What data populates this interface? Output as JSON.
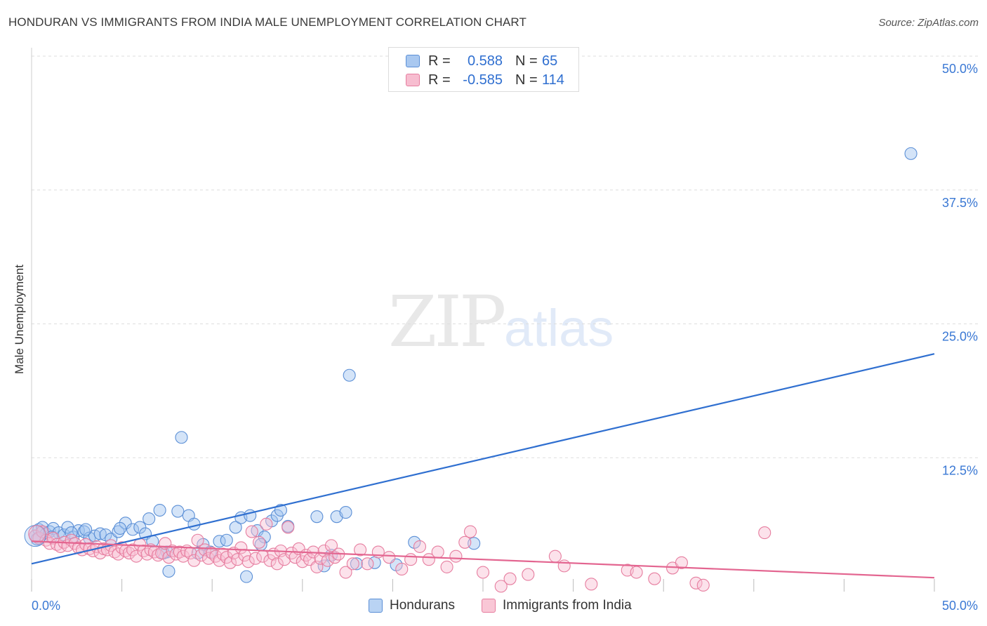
{
  "title": "HONDURAN VS IMMIGRANTS FROM INDIA MALE UNEMPLOYMENT CORRELATION CHART",
  "source": "Source: ZipAtlas.com",
  "watermark": {
    "zip": "ZIP",
    "atlas": "atlas"
  },
  "legend_top": {
    "rows": [
      {
        "r_label": "R =",
        "r_value": "0.588",
        "n_label": "N =",
        "n_value": "65",
        "color": "#a9c8f0",
        "border": "#5b8fd6"
      },
      {
        "r_label": "R =",
        "r_value": "-0.585",
        "n_label": "N =",
        "n_value": "114",
        "color": "#f7bdd0",
        "border": "#e67d9f"
      }
    ]
  },
  "legend_bottom": [
    {
      "label": "Hondurans",
      "color": "#b9d3f3",
      "border": "#5b8fd6"
    },
    {
      "label": "Immigrants from India",
      "color": "#f9c7d6",
      "border": "#e67d9f"
    }
  ],
  "chart_data": {
    "type": "scatter",
    "title": "HONDURAN VS IMMIGRANTS FROM INDIA MALE UNEMPLOYMENT CORRELATION CHART",
    "xlabel": "",
    "ylabel": "Male Unemployment",
    "xlim": [
      0,
      50
    ],
    "ylim": [
      0,
      50
    ],
    "x_tick_labels": [
      "0.0%",
      "50.0%"
    ],
    "y_ticks": [
      12.5,
      25.0,
      37.5,
      50.0
    ],
    "y_tick_labels": [
      "12.5%",
      "25.0%",
      "37.5%",
      "50.0%"
    ],
    "grid": true,
    "series": [
      {
        "name": "Hondurans",
        "color": "#5b8fd6",
        "fill": "rgba(160,195,240,0.45)",
        "trend": {
          "x": [
            0,
            50
          ],
          "y": [
            2.6,
            22.2
          ],
          "color": "#2f6fd0"
        },
        "points": [
          [
            0.2,
            5.2
          ],
          [
            0.4,
            5.8
          ],
          [
            0.6,
            6.0
          ],
          [
            0.8,
            5.4
          ],
          [
            1.0,
            5.6
          ],
          [
            1.2,
            5.9
          ],
          [
            1.5,
            5.5
          ],
          [
            1.8,
            5.3
          ],
          [
            2.0,
            6.0
          ],
          [
            2.3,
            5.1
          ],
          [
            2.6,
            5.7
          ],
          [
            2.9,
            5.6
          ],
          [
            3.2,
            5.0
          ],
          [
            3.5,
            5.2
          ],
          [
            3.8,
            5.4
          ],
          [
            4.1,
            5.3
          ],
          [
            4.4,
            4.9
          ],
          [
            4.8,
            5.6
          ],
          [
            5.2,
            6.4
          ],
          [
            5.6,
            5.8
          ],
          [
            6.0,
            6.0
          ],
          [
            6.3,
            5.4
          ],
          [
            6.5,
            6.8
          ],
          [
            6.7,
            4.7
          ],
          [
            7.1,
            7.6
          ],
          [
            7.5,
            3.7
          ],
          [
            7.6,
            1.9
          ],
          [
            8.1,
            7.5
          ],
          [
            8.3,
            14.4
          ],
          [
            8.7,
            7.1
          ],
          [
            9.0,
            6.3
          ],
          [
            9.5,
            4.4
          ],
          [
            9.9,
            3.7
          ],
          [
            10.4,
            4.7
          ],
          [
            10.8,
            4.8
          ],
          [
            11.3,
            6.0
          ],
          [
            11.6,
            6.9
          ],
          [
            11.9,
            1.4
          ],
          [
            12.1,
            7.1
          ],
          [
            12.5,
            5.7
          ],
          [
            12.9,
            5.1
          ],
          [
            13.3,
            6.6
          ],
          [
            13.6,
            7.1
          ],
          [
            13.8,
            7.6
          ],
          [
            14.2,
            6.1
          ],
          [
            15.8,
            7.0
          ],
          [
            16.2,
            2.4
          ],
          [
            16.6,
            3.4
          ],
          [
            16.9,
            7.0
          ],
          [
            17.4,
            7.4
          ],
          [
            17.6,
            20.2
          ],
          [
            18.0,
            2.6
          ],
          [
            19.0,
            2.7
          ],
          [
            20.2,
            2.5
          ],
          [
            21.2,
            4.6
          ],
          [
            24.5,
            4.5
          ],
          [
            48.7,
            40.9
          ],
          [
            0.3,
            4.9
          ],
          [
            1.1,
            5.1
          ],
          [
            2.2,
            5.5
          ],
          [
            3.0,
            5.8
          ],
          [
            4.9,
            5.9
          ],
          [
            7.3,
            3.6
          ],
          [
            9.2,
            3.6
          ],
          [
            12.7,
            4.4
          ]
        ]
      },
      {
        "name": "Immigrants from India",
        "color": "#e67d9f",
        "fill": "rgba(248,190,210,0.45)",
        "trend": {
          "x": [
            0,
            50
          ],
          "y": [
            4.7,
            1.3
          ],
          "color": "#e36590"
        },
        "points": [
          [
            0.2,
            5.2
          ],
          [
            0.4,
            5.0
          ],
          [
            0.6,
            5.6
          ],
          [
            0.8,
            4.8
          ],
          [
            1.0,
            4.5
          ],
          [
            1.2,
            5.0
          ],
          [
            1.4,
            4.4
          ],
          [
            1.6,
            4.2
          ],
          [
            1.8,
            4.6
          ],
          [
            2.0,
            4.3
          ],
          [
            2.2,
            4.8
          ],
          [
            2.4,
            4.5
          ],
          [
            2.6,
            4.1
          ],
          [
            2.8,
            3.9
          ],
          [
            3.0,
            4.4
          ],
          [
            3.2,
            4.0
          ],
          [
            3.4,
            3.8
          ],
          [
            3.6,
            4.2
          ],
          [
            3.8,
            3.6
          ],
          [
            4.0,
            4.0
          ],
          [
            4.2,
            3.9
          ],
          [
            4.4,
            4.3
          ],
          [
            4.6,
            3.7
          ],
          [
            4.8,
            3.5
          ],
          [
            5.0,
            4.1
          ],
          [
            5.2,
            3.8
          ],
          [
            5.4,
            3.6
          ],
          [
            5.6,
            3.9
          ],
          [
            5.8,
            3.3
          ],
          [
            6.0,
            4.4
          ],
          [
            6.2,
            3.8
          ],
          [
            6.4,
            3.5
          ],
          [
            6.6,
            3.9
          ],
          [
            6.8,
            3.7
          ],
          [
            7.0,
            3.4
          ],
          [
            7.2,
            3.6
          ],
          [
            7.4,
            4.5
          ],
          [
            7.6,
            3.2
          ],
          [
            7.8,
            3.8
          ],
          [
            8.0,
            3.5
          ],
          [
            8.2,
            3.7
          ],
          [
            8.4,
            3.3
          ],
          [
            8.6,
            3.8
          ],
          [
            8.8,
            3.6
          ],
          [
            9.0,
            2.9
          ],
          [
            9.2,
            4.8
          ],
          [
            9.4,
            3.4
          ],
          [
            9.6,
            3.9
          ],
          [
            9.8,
            3.1
          ],
          [
            10.0,
            3.6
          ],
          [
            10.2,
            3.3
          ],
          [
            10.4,
            2.9
          ],
          [
            10.6,
            3.5
          ],
          [
            10.8,
            3.2
          ],
          [
            11.0,
            2.7
          ],
          [
            11.2,
            3.6
          ],
          [
            11.4,
            3.0
          ],
          [
            11.6,
            4.1
          ],
          [
            11.8,
            3.4
          ],
          [
            12.0,
            2.8
          ],
          [
            12.2,
            5.6
          ],
          [
            12.4,
            3.1
          ],
          [
            12.6,
            4.6
          ],
          [
            12.8,
            3.3
          ],
          [
            13.0,
            6.3
          ],
          [
            13.2,
            2.9
          ],
          [
            13.4,
            3.5
          ],
          [
            13.6,
            2.6
          ],
          [
            13.8,
            3.8
          ],
          [
            14.0,
            3.0
          ],
          [
            14.2,
            6.0
          ],
          [
            14.4,
            3.6
          ],
          [
            14.6,
            3.2
          ],
          [
            14.8,
            4.0
          ],
          [
            15.0,
            2.8
          ],
          [
            15.2,
            3.4
          ],
          [
            15.4,
            3.0
          ],
          [
            15.6,
            3.7
          ],
          [
            15.8,
            2.3
          ],
          [
            16.0,
            3.1
          ],
          [
            16.2,
            3.8
          ],
          [
            16.4,
            2.9
          ],
          [
            16.6,
            4.3
          ],
          [
            16.8,
            3.2
          ],
          [
            17.0,
            3.5
          ],
          [
            17.4,
            1.8
          ],
          [
            17.8,
            2.6
          ],
          [
            18.2,
            3.9
          ],
          [
            18.6,
            2.6
          ],
          [
            19.2,
            3.7
          ],
          [
            19.8,
            3.2
          ],
          [
            20.5,
            2.1
          ],
          [
            21.0,
            3.0
          ],
          [
            21.5,
            4.2
          ],
          [
            22.0,
            3.0
          ],
          [
            22.5,
            3.7
          ],
          [
            23.0,
            2.3
          ],
          [
            23.5,
            3.3
          ],
          [
            24.0,
            4.6
          ],
          [
            24.3,
            5.6
          ],
          [
            25.0,
            1.8
          ],
          [
            26.0,
            0.5
          ],
          [
            26.5,
            1.2
          ],
          [
            27.5,
            1.6
          ],
          [
            29.0,
            3.3
          ],
          [
            29.5,
            2.4
          ],
          [
            31.0,
            0.7
          ],
          [
            33.0,
            2.0
          ],
          [
            33.5,
            1.8
          ],
          [
            34.5,
            1.2
          ],
          [
            35.5,
            2.2
          ],
          [
            36.0,
            2.7
          ],
          [
            36.8,
            0.8
          ],
          [
            37.2,
            0.6
          ],
          [
            40.6,
            5.5
          ]
        ]
      }
    ]
  }
}
